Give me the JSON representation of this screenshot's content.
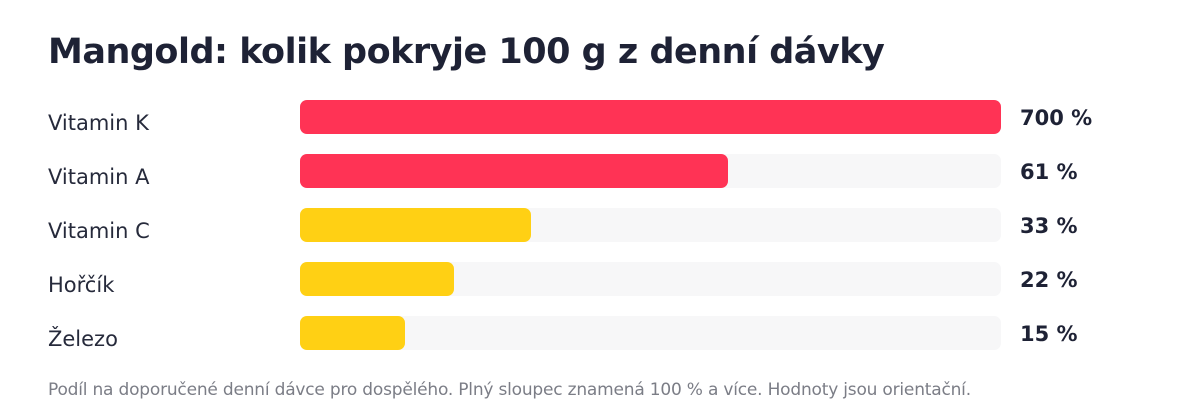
{
  "chart_data": {
    "type": "bar",
    "orientation": "horizontal",
    "title": "Mangold: kolik pokryje 100 g z denní dávky",
    "categories": [
      "Vitamin K",
      "Vitamin A",
      "Vitamin C",
      "Hořčík",
      "Železo"
    ],
    "values": [
      700,
      61,
      33,
      22,
      15
    ],
    "value_labels": [
      "700 %",
      "61 %",
      "33 %",
      "22 %",
      "15 %"
    ],
    "unit": "%",
    "xlim": [
      0,
      100
    ],
    "bar_colors": [
      "#ff3355",
      "#ff3355",
      "#ffd014",
      "#ffd014",
      "#ffd014"
    ],
    "track_color": "#f7f7f8",
    "grid": false,
    "legend": "none",
    "footnote": "Podíl na doporučené denní dávce pro dospělého. Plný sloupec znamená 100 % a více. Hodnoty jsou orientační."
  }
}
